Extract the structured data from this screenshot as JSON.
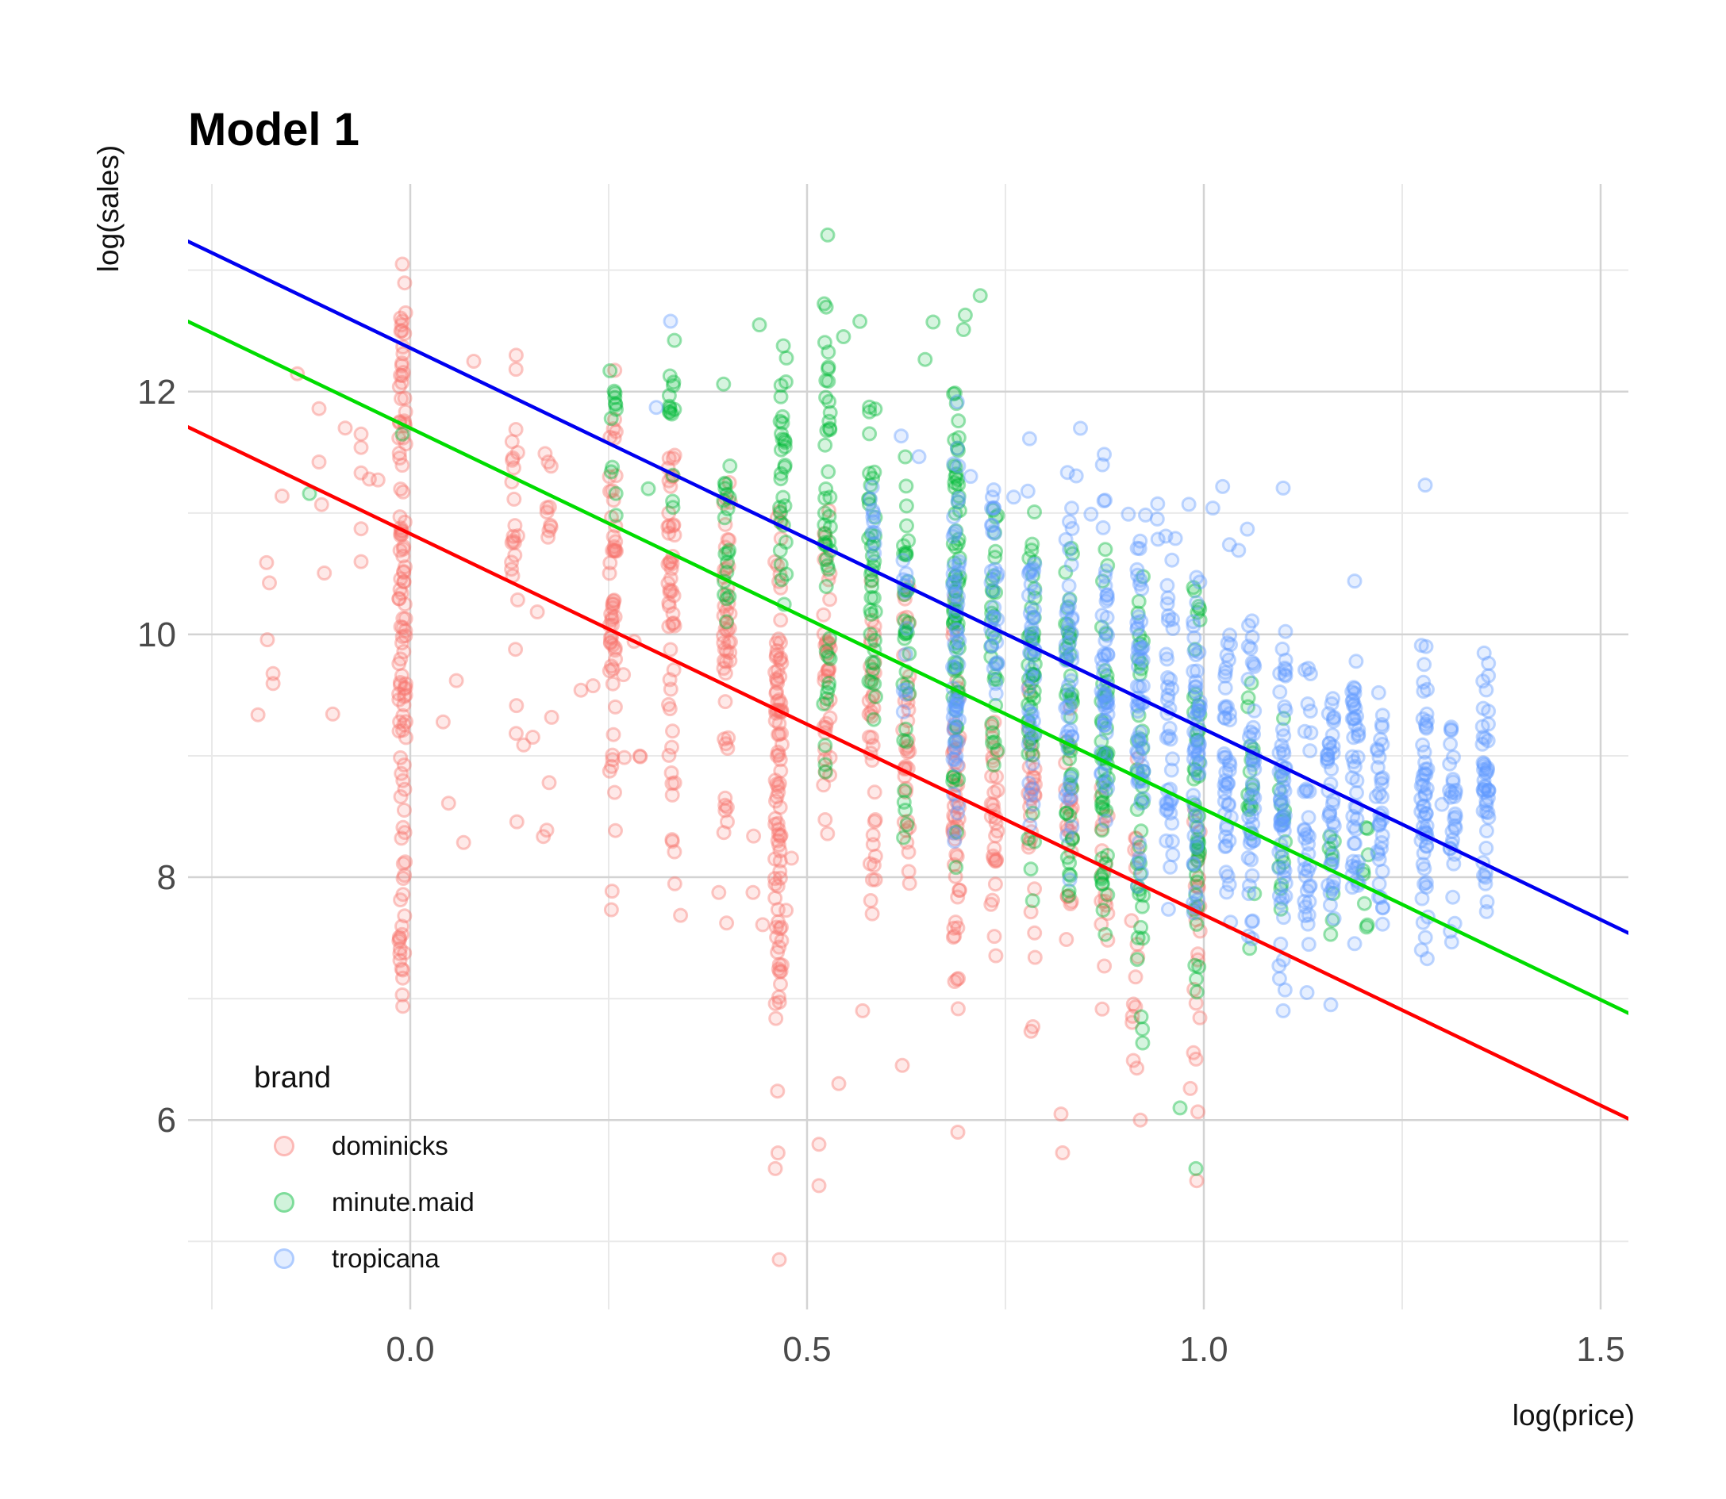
{
  "title": "Model 1",
  "colors": {
    "background": "#ffffff",
    "grid_major": "#d3d3d3",
    "grid_minor": "#e9e9e9",
    "tick_label": "#4a4a4a",
    "text": "#000000"
  },
  "chart_data": {
    "type": "scatter",
    "title": "Model 1",
    "xlabel": "log(price)",
    "ylabel": "log(sales)",
    "legend_title": "brand",
    "legend_position": "inside bottom-left",
    "grid": true,
    "x_ticks": [
      "0.0",
      "0.5",
      "1.0",
      "1.5"
    ],
    "x_tick_values": [
      0,
      0.5,
      1,
      1.5
    ],
    "y_ticks": [
      "6",
      "8",
      "10",
      "12"
    ],
    "y_tick_values": [
      6,
      8,
      10,
      12
    ],
    "x_minor_values": [
      -0.25,
      0.25,
      0.75,
      1.25
    ],
    "y_minor_values": [
      5,
      7,
      9,
      11,
      13
    ],
    "x_domain": [
      -0.28,
      1.535
    ],
    "y_domain": [
      4.44,
      13.71
    ],
    "point_style": {
      "radius": 8,
      "fill_alpha": 0.16,
      "stroke_alpha": 0.4,
      "stroke_width": 3
    },
    "regression_lines": [
      {
        "brand": "dominicks",
        "color": "#FF0000",
        "slope": -3.1387,
        "intercept": 10.8288
      },
      {
        "brand": "minute.maid",
        "color": "#00DC00",
        "slope": -3.1387,
        "intercept": 11.6989
      },
      {
        "brand": "tropicana",
        "color": "#0000F0",
        "slope": -3.1387,
        "intercept": 12.3587
      }
    ],
    "series": [
      {
        "name": "dominicks",
        "color": "#F8766D",
        "columns": [
          [
            -0.01,
            13.1,
            6.4,
            115
          ],
          [
            0.131,
            12.35,
            9.4,
            22
          ],
          [
            0.174,
            11.7,
            10.3,
            10
          ],
          [
            0.255,
            12.4,
            7.45,
            55
          ],
          [
            0.329,
            12.15,
            7.8,
            50
          ],
          [
            0.399,
            11.6,
            7.9,
            45
          ],
          [
            0.464,
            11.35,
            5.6,
            95
          ],
          [
            0.525,
            11.1,
            7.9,
            40
          ],
          [
            0.582,
            10.65,
            6.9,
            35
          ],
          [
            0.625,
            10.6,
            7.3,
            35
          ],
          [
            0.688,
            10.4,
            6.3,
            50
          ],
          [
            0.736,
            9.75,
            6.8,
            30
          ],
          [
            0.783,
            9.8,
            6.4,
            30
          ],
          [
            0.83,
            9.6,
            6.9,
            22
          ],
          [
            0.875,
            9.45,
            6.3,
            18
          ],
          [
            0.913,
            9.4,
            5.8,
            16
          ],
          [
            0.991,
            9.3,
            5.5,
            22
          ]
        ],
        "clouds": [
          [
            0.03,
            0.3,
            8.25,
            10.25,
            22
          ],
          [
            0.33,
            0.52,
            7.6,
            8.6,
            10
          ],
          [
            -0.2,
            0.02,
            9.2,
            12.2,
            14
          ]
        ],
        "points": [
          [
            -0.115,
            11.86
          ],
          [
            -0.115,
            11.42
          ],
          [
            -0.082,
            11.7
          ],
          [
            -0.062,
            11.65
          ],
          [
            -0.062,
            11.54
          ],
          [
            -0.062,
            11.33
          ],
          [
            -0.062,
            10.87
          ],
          [
            -0.062,
            10.6
          ],
          [
            -0.01,
            13.05
          ],
          [
            0.08,
            12.25
          ],
          [
            0.465,
            4.85
          ],
          [
            0.46,
            5.6
          ],
          [
            0.515,
            5.8
          ],
          [
            0.515,
            5.46
          ],
          [
            0.54,
            6.3
          ],
          [
            0.57,
            6.9
          ],
          [
            0.62,
            6.45
          ],
          [
            0.69,
            5.9
          ],
          [
            0.82,
            6.05
          ],
          [
            0.822,
            5.73
          ],
          [
            0.92,
            6.0
          ],
          [
            0.983,
            6.26
          ],
          [
            0.991,
            5.5
          ]
        ]
      },
      {
        "name": "minute.maid",
        "color": "#00BA38",
        "columns": [
          [
            0.255,
            12.4,
            10.8,
            12
          ],
          [
            0.329,
            12.5,
            10.9,
            14
          ],
          [
            0.399,
            12.2,
            9.6,
            20
          ],
          [
            0.47,
            12.7,
            9.7,
            30
          ],
          [
            0.525,
            12.75,
            8.3,
            45
          ],
          [
            0.582,
            12.0,
            8.5,
            40
          ],
          [
            0.625,
            11.6,
            8.0,
            35
          ],
          [
            0.688,
            12.2,
            7.3,
            70
          ],
          [
            0.736,
            11.3,
            8.0,
            30
          ],
          [
            0.783,
            11.2,
            7.5,
            45
          ],
          [
            0.83,
            11.0,
            7.0,
            45
          ],
          [
            0.875,
            10.8,
            7.0,
            50
          ],
          [
            0.92,
            10.8,
            6.4,
            40
          ],
          [
            0.991,
            10.5,
            6.2,
            45
          ],
          [
            1.06,
            9.8,
            7.3,
            18
          ],
          [
            1.099,
            9.5,
            7.5,
            14
          ],
          [
            1.16,
            8.4,
            7.2,
            8
          ],
          [
            1.205,
            8.6,
            7.3,
            8
          ]
        ],
        "clouds": [
          [
            0.5,
            0.72,
            12.2,
            12.8,
            8
          ]
        ],
        "points": [
          [
            -0.127,
            11.16
          ],
          [
            -0.01,
            11.65
          ],
          [
            0.526,
            13.29
          ],
          [
            0.3,
            11.2
          ],
          [
            0.99,
            5.6
          ],
          [
            0.97,
            6.1
          ],
          [
            0.44,
            12.55
          ]
        ]
      },
      {
        "name": "tropicana",
        "color": "#619CFF",
        "columns": [
          [
            0.582,
            11.4,
            10.4,
            10
          ],
          [
            0.625,
            11.05,
            9.1,
            12
          ],
          [
            0.688,
            12.15,
            8.0,
            60
          ],
          [
            0.736,
            11.6,
            8.9,
            30
          ],
          [
            0.783,
            11.5,
            8.2,
            40
          ],
          [
            0.83,
            11.6,
            7.9,
            45
          ],
          [
            0.875,
            11.5,
            8.0,
            50
          ],
          [
            0.92,
            11.4,
            7.8,
            55
          ],
          [
            0.957,
            11.0,
            7.6,
            40
          ],
          [
            0.991,
            10.9,
            7.5,
            55
          ],
          [
            1.03,
            10.5,
            7.4,
            45
          ],
          [
            1.06,
            10.4,
            7.2,
            45
          ],
          [
            1.099,
            10.3,
            7.0,
            60
          ],
          [
            1.131,
            10.0,
            7.1,
            35
          ],
          [
            1.16,
            9.9,
            7.3,
            40
          ],
          [
            1.191,
            10.0,
            7.2,
            45
          ],
          [
            1.221,
            9.85,
            7.4,
            35
          ],
          [
            1.278,
            10.1,
            7.1,
            55
          ],
          [
            1.313,
            9.6,
            7.3,
            30
          ],
          [
            1.355,
            10.0,
            7.5,
            45
          ]
        ],
        "clouds": [
          [
            0.85,
            1.1,
            10.6,
            11.6,
            16
          ],
          [
            0.6,
            0.85,
            10.9,
            11.7,
            10
          ]
        ],
        "points": [
          [
            0.328,
            12.58
          ],
          [
            1.279,
            11.23
          ],
          [
            1.19,
            10.44
          ],
          [
            1.3,
            8.6
          ],
          [
            1.355,
            8.0
          ],
          [
            1.16,
            6.95
          ],
          [
            1.1,
            6.9
          ],
          [
            1.13,
            7.05
          ],
          [
            0.31,
            11.87
          ]
        ]
      }
    ]
  }
}
